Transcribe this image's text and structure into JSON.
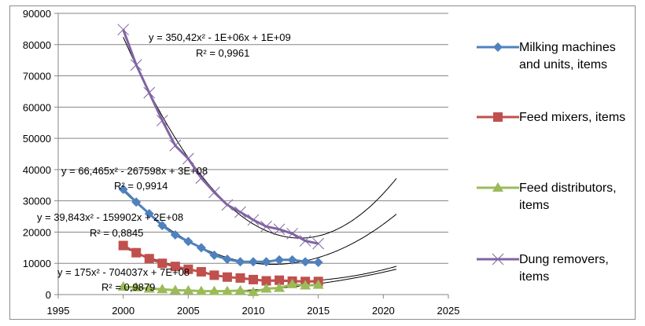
{
  "chart_data": {
    "type": "line",
    "title": "",
    "xlabel": "",
    "ylabel": "",
    "xlim": [
      1995,
      2025
    ],
    "ylim": [
      0,
      90000
    ],
    "x_ticks": [
      "1995",
      "2000",
      "2005",
      "2010",
      "2015",
      "2020",
      "2025"
    ],
    "y_ticks": [
      "0",
      "10000",
      "20000",
      "30000",
      "40000",
      "50000",
      "60000",
      "70000",
      "80000",
      "90000"
    ],
    "grid": "horizontal",
    "legend_position": "right",
    "x": [
      2000,
      2001,
      2002,
      2003,
      2004,
      2005,
      2006,
      2007,
      2008,
      2009,
      2010,
      2011,
      2012,
      2013,
      2014,
      2015
    ],
    "series": [
      {
        "name": "Milking machines and units, items",
        "legend_label": "Milking machines\nand units, items",
        "color": "#4f81bd",
        "marker": "diamond",
        "values": [
          33700,
          29600,
          25900,
          22100,
          19100,
          17000,
          15000,
          12600,
          11300,
          10500,
          10500,
          10500,
          11100,
          11100,
          10500,
          10300
        ],
        "trendline": {
          "type": "polynomial-2",
          "equation": "y = 66,465x² - 267598x + 3E+08",
          "r2": "R² = 0,9914",
          "extends_to": 2021,
          "end_value": 25600
        }
      },
      {
        "name": "Feed mixers, items",
        "legend_label": "Feed mixers, items",
        "color": "#c0504d",
        "marker": "square",
        "values": [
          15700,
          13400,
          11500,
          10000,
          9000,
          8100,
          7300,
          6200,
          5600,
          5300,
          4800,
          4400,
          4600,
          4300,
          4200,
          4200
        ],
        "trendline": {
          "type": "polynomial-2",
          "equation": "y = 39,843x² - 159902x + 2E+08",
          "r2": "R² = 0,8845",
          "extends_to": 2021,
          "end_value": 7600
        }
      },
      {
        "name": "Feed distributors, items",
        "legend_label": "Feed distributors,\nitems",
        "color": "#9bbb59",
        "marker": "triangle",
        "values": [
          2500,
          2300,
          1900,
          1700,
          1400,
          1300,
          1100,
          1100,
          1100,
          1300,
          800,
          1900,
          2100,
          3300,
          2900,
          3100
        ],
        "trendline": {
          "type": "polynomial-2",
          "equation": "y = 175x² - 704037x + 7E+08",
          "r2": "R² = 0,9879",
          "extends_to": 2021,
          "end_value": 9300
        }
      },
      {
        "name": "Dung removers, items",
        "legend_label": "Dung removers,\nitems",
        "color": "#8064a2",
        "marker": "x",
        "values": [
          84800,
          73500,
          64600,
          55700,
          47700,
          43500,
          37300,
          32700,
          28700,
          26400,
          23900,
          21800,
          20900,
          19500,
          17200,
          16300
        ],
        "trendline": {
          "type": "polynomial-2",
          "equation": "y = 350,42x² - 1E+06x + 1E+09",
          "r2": "R² = 0,9961",
          "extends_to": 2021,
          "end_value": 37300
        }
      }
    ]
  }
}
